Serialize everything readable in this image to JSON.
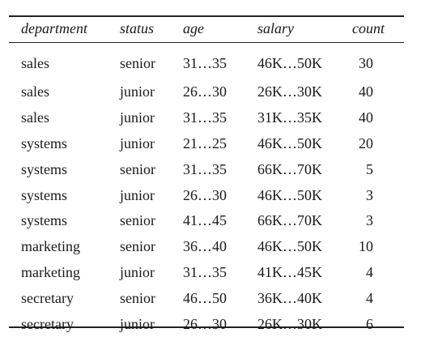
{
  "table": {
    "headers": {
      "department": "department",
      "status": "status",
      "age": "age",
      "salary": "salary",
      "count": "count"
    },
    "rows": [
      {
        "department": "sales",
        "status": "senior",
        "age": "31…35",
        "salary": "46K…50K",
        "count": "30"
      },
      {
        "department": "sales",
        "status": "junior",
        "age": "26…30",
        "salary": "26K…30K",
        "count": "40"
      },
      {
        "department": "sales",
        "status": "junior",
        "age": "31…35",
        "salary": "31K…35K",
        "count": "40"
      },
      {
        "department": "systems",
        "status": "junior",
        "age": "21…25",
        "salary": "46K…50K",
        "count": "20"
      },
      {
        "department": "systems",
        "status": "senior",
        "age": "31…35",
        "salary": "66K…70K",
        "count": "5"
      },
      {
        "department": "systems",
        "status": "junior",
        "age": "26…30",
        "salary": "46K…50K",
        "count": "3"
      },
      {
        "department": "systems",
        "status": "senior",
        "age": "41…45",
        "salary": "66K…70K",
        "count": "3"
      },
      {
        "department": "marketing",
        "status": "senior",
        "age": "36…40",
        "salary": "46K…50K",
        "count": "10"
      },
      {
        "department": "marketing",
        "status": "junior",
        "age": "31…35",
        "salary": "41K…45K",
        "count": "4"
      },
      {
        "department": "secretary",
        "status": "senior",
        "age": "46…50",
        "salary": "36K…40K",
        "count": "4"
      },
      {
        "department": "secretary",
        "status": "junior",
        "age": "26…30",
        "salary": "26K…30K",
        "count": "6"
      }
    ]
  }
}
